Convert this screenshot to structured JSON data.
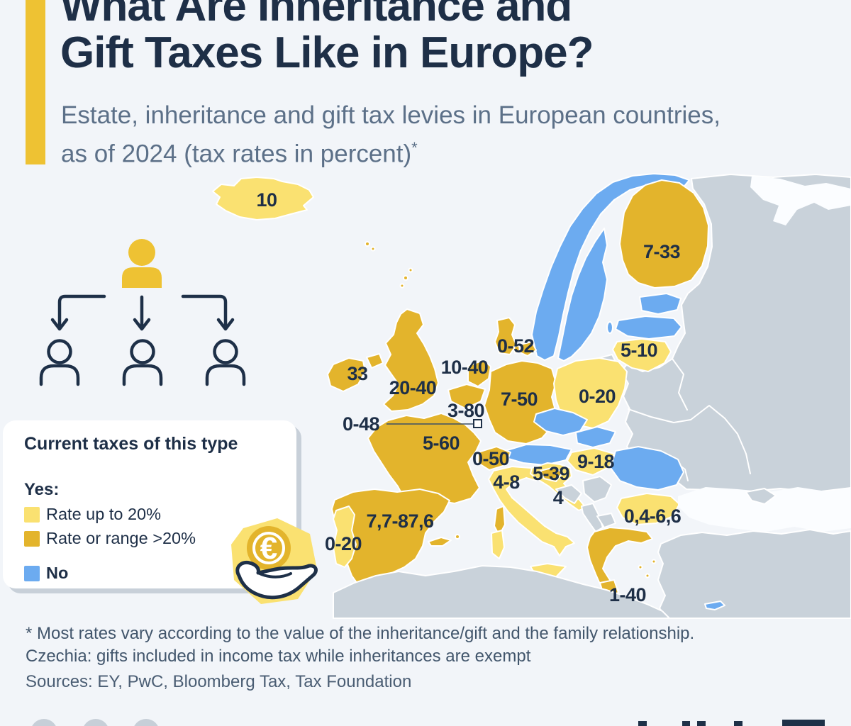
{
  "brand": {
    "accent_color": "#EEC233",
    "navy": "#1E2F47"
  },
  "header": {
    "title_line1": "What Are Inheritance and",
    "title_line2": "Gift Taxes Like in Europe?",
    "subtitle_line1": "Estate, inheritance and gift tax levies in European countries,",
    "subtitle_line2": "as of 2024 (tax rates in percent)",
    "footnote_marker": "*"
  },
  "legend": {
    "title": "Current taxes of this type",
    "yes_label": "Yes:",
    "items": [
      {
        "label": "Rate up to 20%",
        "color": "#FAE171",
        "group": "yes"
      },
      {
        "label": "Rate or range >20%",
        "color": "#E3B42C",
        "group": "yes"
      },
      {
        "label": "No",
        "color": "#6CABF0",
        "group": "no"
      }
    ]
  },
  "icons": {
    "euro_symbol": "€"
  },
  "footnote": {
    "line1": "* Most rates vary according to the value of the inheritance/gift and the family relationship.",
    "line2": "Czechia: gifts included in income tax while inheritances are exempt"
  },
  "sources": "Sources: EY, PwC, Bloomberg Tax, Tax Foundation",
  "chart_data": {
    "type": "choropleth",
    "title": "What Are Inheritance and Gift Taxes Like in Europe?",
    "subtitle": "Estate, inheritance and gift tax levies in European countries, as of 2024 (tax rates in percent)*",
    "unit": "percent",
    "legend_title": "Current taxes of this type",
    "categories": {
      "rate-up-to-20": {
        "label": "Rate up to 20%",
        "color": "#FAE171"
      },
      "rate-over-20": {
        "label": "Rate or range >20%",
        "color": "#E3B42C"
      },
      "no-tax": {
        "label": "No",
        "color": "#6CABF0"
      },
      "no-data": {
        "label": "",
        "color": "#C9D2DA"
      }
    },
    "countries": [
      {
        "name": "Iceland",
        "value": "10",
        "category": "rate-up-to-20"
      },
      {
        "name": "Finland",
        "value": "7-33",
        "category": "rate-over-20"
      },
      {
        "name": "Denmark",
        "value": "0-52",
        "category": "rate-over-20"
      },
      {
        "name": "Lithuania",
        "value": "5-10",
        "category": "rate-up-to-20"
      },
      {
        "name": "Ireland",
        "value": "33",
        "category": "rate-over-20"
      },
      {
        "name": "United Kingdom",
        "value": "20-40",
        "category": "rate-over-20"
      },
      {
        "name": "Netherlands",
        "value": "10-40",
        "category": "rate-over-20"
      },
      {
        "name": "Belgium",
        "value": "3-80",
        "category": "rate-over-20"
      },
      {
        "name": "Luxembourg",
        "value": "0-48",
        "category": "rate-over-20"
      },
      {
        "name": "Germany",
        "value": "7-50",
        "category": "rate-over-20"
      },
      {
        "name": "Poland",
        "value": "0-20",
        "category": "rate-up-to-20"
      },
      {
        "name": "France",
        "value": "5-60",
        "category": "rate-over-20"
      },
      {
        "name": "Switzerland",
        "value": "0-50",
        "category": "rate-over-20"
      },
      {
        "name": "Hungary",
        "value": "9-18",
        "category": "rate-up-to-20"
      },
      {
        "name": "Slovenia",
        "value": "5-39",
        "category": "rate-over-20"
      },
      {
        "name": "Croatia",
        "value": "4",
        "category": "rate-up-to-20"
      },
      {
        "name": "Italy",
        "value": "4-8",
        "category": "rate-up-to-20"
      },
      {
        "name": "Spain",
        "value": "7,7-87,6",
        "category": "rate-over-20"
      },
      {
        "name": "Portugal",
        "value": "0-20",
        "category": "rate-up-to-20"
      },
      {
        "name": "Bulgaria",
        "value": "0,4-6,6",
        "category": "rate-up-to-20"
      },
      {
        "name": "Greece",
        "value": "1-40",
        "category": "rate-over-20"
      },
      {
        "name": "Norway",
        "value": "",
        "category": "no-tax"
      },
      {
        "name": "Sweden",
        "value": "",
        "category": "no-tax"
      },
      {
        "name": "Estonia",
        "value": "",
        "category": "no-tax"
      },
      {
        "name": "Latvia",
        "value": "",
        "category": "no-tax"
      },
      {
        "name": "Czechia",
        "value": "",
        "category": "no-tax"
      },
      {
        "name": "Austria",
        "value": "",
        "category": "no-tax"
      },
      {
        "name": "Slovakia",
        "value": "",
        "category": "no-tax"
      },
      {
        "name": "Romania",
        "value": "",
        "category": "no-tax"
      },
      {
        "name": "Malta",
        "value": "",
        "category": "no-tax"
      },
      {
        "name": "Cyprus",
        "value": "",
        "category": "no-tax"
      }
    ]
  }
}
